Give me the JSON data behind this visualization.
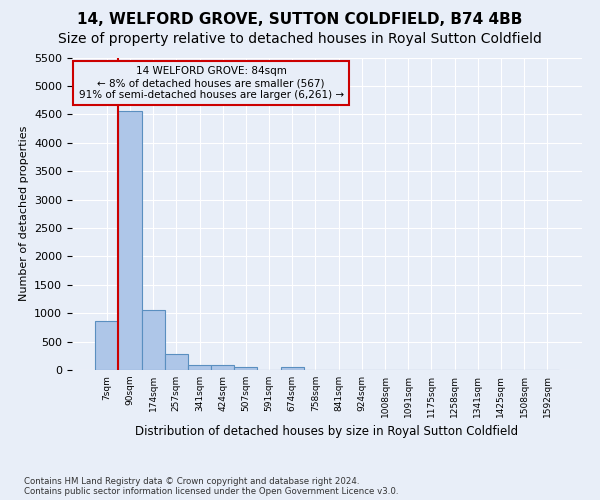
{
  "title": "14, WELFORD GROVE, SUTTON COLDFIELD, B74 4BB",
  "subtitle": "Size of property relative to detached houses in Royal Sutton Coldfield",
  "xlabel": "Distribution of detached houses by size in Royal Sutton Coldfield",
  "ylabel": "Number of detached properties",
  "footnote1": "Contains HM Land Registry data © Crown copyright and database right 2024.",
  "footnote2": "Contains public sector information licensed under the Open Government Licence v3.0.",
  "bin_labels": [
    "7sqm",
    "90sqm",
    "174sqm",
    "257sqm",
    "341sqm",
    "424sqm",
    "507sqm",
    "591sqm",
    "674sqm",
    "758sqm",
    "841sqm",
    "924sqm",
    "1008sqm",
    "1091sqm",
    "1175sqm",
    "1258sqm",
    "1341sqm",
    "1425sqm",
    "1508sqm",
    "1592sqm"
  ],
  "bar_values": [
    870,
    4560,
    1050,
    290,
    85,
    80,
    55,
    0,
    55,
    0,
    0,
    0,
    0,
    0,
    0,
    0,
    0,
    0,
    0,
    0
  ],
  "bar_color": "#aec6e8",
  "bar_edge_color": "#5a8fc0",
  "vline_x_idx": 1,
  "vline_color": "#cc0000",
  "ylim": [
    0,
    5500
  ],
  "yticks": [
    0,
    500,
    1000,
    1500,
    2000,
    2500,
    3000,
    3500,
    4000,
    4500,
    5000,
    5500
  ],
  "annotation_text": "14 WELFORD GROVE: 84sqm\n← 8% of detached houses are smaller (567)\n91% of semi-detached houses are larger (6,261) →",
  "annotation_box_color": "#cc0000",
  "bg_color": "#e8eef8",
  "title_fontsize": 11,
  "subtitle_fontsize": 10
}
